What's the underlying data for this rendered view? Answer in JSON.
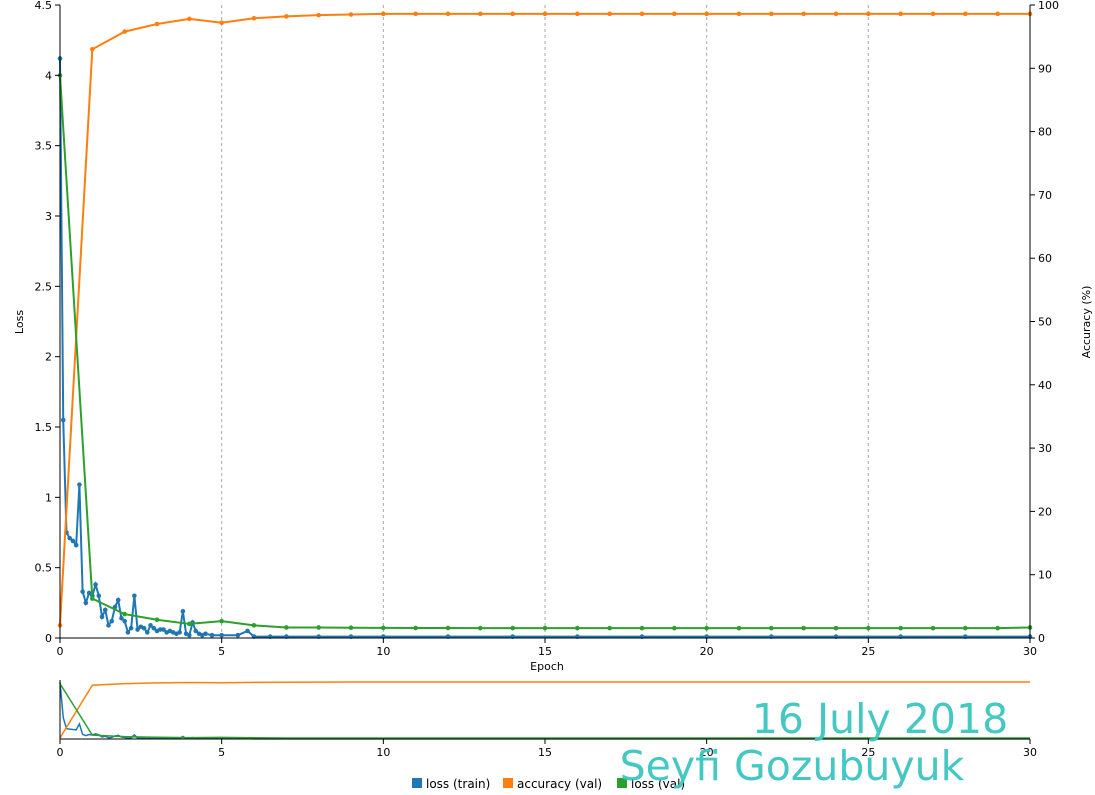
{
  "chart_data": {
    "type": "line",
    "xlabel": "Epoch",
    "ylabel_left": "Loss",
    "ylabel_right": "Accuracy (%)",
    "xlim": [
      0,
      30
    ],
    "ylim_left": [
      0,
      4.5
    ],
    "ylim_right": [
      0,
      100
    ],
    "x_ticks": [
      0,
      5,
      10,
      15,
      20,
      25,
      30
    ],
    "y_ticks_left": [
      "0",
      "0.5",
      "1",
      "1.5",
      "2",
      "2.5",
      "3",
      "3.5",
      "4",
      "4.5"
    ],
    "y_ticks_right": [
      "0",
      "10",
      "20",
      "30",
      "40",
      "50",
      "60",
      "70",
      "80",
      "90",
      "100"
    ],
    "grid": "vertical dashed at x ticks",
    "legend_position": "bottom",
    "series": [
      {
        "name": "loss (train)",
        "axis": "left",
        "color": "#1f77b4",
        "points": [
          [
            0,
            4.12
          ],
          [
            0.1,
            1.55
          ],
          [
            0.2,
            0.75
          ],
          [
            0.3,
            0.71
          ],
          [
            0.4,
            0.69
          ],
          [
            0.5,
            0.66
          ],
          [
            0.6,
            1.09
          ],
          [
            0.7,
            0.33
          ],
          [
            0.8,
            0.25
          ],
          [
            0.9,
            0.32
          ],
          [
            1.0,
            0.3
          ],
          [
            1.1,
            0.38
          ],
          [
            1.2,
            0.3
          ],
          [
            1.3,
            0.15
          ],
          [
            1.4,
            0.2
          ],
          [
            1.5,
            0.09
          ],
          [
            1.6,
            0.12
          ],
          [
            1.7,
            0.22
          ],
          [
            1.8,
            0.27
          ],
          [
            1.9,
            0.14
          ],
          [
            2.0,
            0.12
          ],
          [
            2.1,
            0.04
          ],
          [
            2.2,
            0.07
          ],
          [
            2.3,
            0.3
          ],
          [
            2.4,
            0.06
          ],
          [
            2.5,
            0.08
          ],
          [
            2.6,
            0.07
          ],
          [
            2.7,
            0.04
          ],
          [
            2.8,
            0.09
          ],
          [
            2.9,
            0.07
          ],
          [
            3.0,
            0.05
          ],
          [
            3.1,
            0.06
          ],
          [
            3.2,
            0.06
          ],
          [
            3.3,
            0.04
          ],
          [
            3.4,
            0.05
          ],
          [
            3.5,
            0.04
          ],
          [
            3.6,
            0.03
          ],
          [
            3.7,
            0.04
          ],
          [
            3.8,
            0.19
          ],
          [
            3.9,
            0.03
          ],
          [
            4.0,
            0.02
          ],
          [
            4.1,
            0.11
          ],
          [
            4.2,
            0.05
          ],
          [
            4.3,
            0.03
          ],
          [
            4.4,
            0.02
          ],
          [
            4.5,
            0.03
          ],
          [
            4.7,
            0.02
          ],
          [
            5.0,
            0.02
          ],
          [
            5.5,
            0.02
          ],
          [
            5.8,
            0.05
          ],
          [
            6.0,
            0.01
          ],
          [
            6.5,
            0.01
          ],
          [
            7.0,
            0.01
          ],
          [
            8.0,
            0.01
          ],
          [
            9.0,
            0.01
          ],
          [
            10,
            0.01
          ],
          [
            12,
            0.01
          ],
          [
            14,
            0.01
          ],
          [
            16,
            0.01
          ],
          [
            18,
            0.01
          ],
          [
            20,
            0.01
          ],
          [
            22,
            0.01
          ],
          [
            24,
            0.01
          ],
          [
            26,
            0.01
          ],
          [
            28,
            0.01
          ],
          [
            30,
            0.01
          ]
        ]
      },
      {
        "name": "accuracy (val)",
        "axis": "right",
        "color": "#ff7f0e",
        "points": [
          [
            0,
            2.0
          ],
          [
            1,
            93.0
          ],
          [
            2,
            95.8
          ],
          [
            3,
            97.0
          ],
          [
            4,
            97.8
          ],
          [
            5,
            97.2
          ],
          [
            6,
            97.9
          ],
          [
            7,
            98.2
          ],
          [
            8,
            98.4
          ],
          [
            9,
            98.5
          ],
          [
            10,
            98.6
          ],
          [
            11,
            98.6
          ],
          [
            12,
            98.6
          ],
          [
            13,
            98.6
          ],
          [
            14,
            98.6
          ],
          [
            15,
            98.6
          ],
          [
            16,
            98.6
          ],
          [
            17,
            98.6
          ],
          [
            18,
            98.6
          ],
          [
            19,
            98.6
          ],
          [
            20,
            98.6
          ],
          [
            21,
            98.6
          ],
          [
            22,
            98.6
          ],
          [
            23,
            98.6
          ],
          [
            24,
            98.6
          ],
          [
            25,
            98.6
          ],
          [
            26,
            98.6
          ],
          [
            27,
            98.6
          ],
          [
            28,
            98.6
          ],
          [
            29,
            98.6
          ],
          [
            30,
            98.6
          ]
        ]
      },
      {
        "name": "loss (val)",
        "axis": "left",
        "color": "#2ca02c",
        "points": [
          [
            0,
            4.0
          ],
          [
            1,
            0.28
          ],
          [
            2,
            0.17
          ],
          [
            3,
            0.13
          ],
          [
            4,
            0.1
          ],
          [
            5,
            0.12
          ],
          [
            6,
            0.09
          ],
          [
            7,
            0.075
          ],
          [
            8,
            0.075
          ],
          [
            9,
            0.073
          ],
          [
            10,
            0.072
          ],
          [
            11,
            0.071
          ],
          [
            12,
            0.071
          ],
          [
            13,
            0.07
          ],
          [
            14,
            0.07
          ],
          [
            15,
            0.07
          ],
          [
            16,
            0.07
          ],
          [
            17,
            0.07
          ],
          [
            18,
            0.07
          ],
          [
            19,
            0.07
          ],
          [
            20,
            0.07
          ],
          [
            21,
            0.07
          ],
          [
            22,
            0.07
          ],
          [
            23,
            0.07
          ],
          [
            24,
            0.07
          ],
          [
            25,
            0.07
          ],
          [
            26,
            0.07
          ],
          [
            27,
            0.07
          ],
          [
            28,
            0.07
          ],
          [
            29,
            0.07
          ],
          [
            30,
            0.075
          ]
        ]
      }
    ]
  },
  "watermark": {
    "date": "16 July 2018",
    "author": "Seyfi Gozubuyuk",
    "color": "#3cc6c0"
  }
}
